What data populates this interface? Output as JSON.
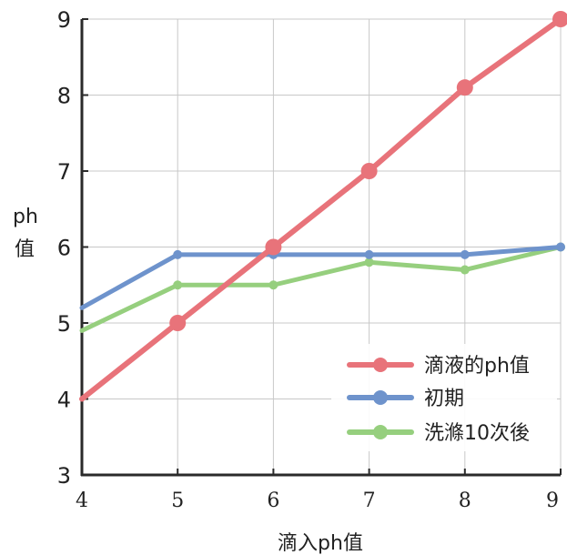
{
  "chart_data": {
    "type": "line",
    "title": "",
    "xlabel": "滴入ph值",
    "ylabel_lines": [
      "ph",
      "值"
    ],
    "xlim": [
      4,
      9
    ],
    "ylim": [
      3,
      9
    ],
    "xticks": [
      4,
      5,
      6,
      7,
      8,
      9
    ],
    "yticks": [
      3,
      4,
      5,
      6,
      7,
      8,
      9
    ],
    "grid": true,
    "legend_position": "bottom-right",
    "series": [
      {
        "name": "滴液的ph值",
        "color": "#e8737a",
        "x": [
          4,
          5,
          6,
          7,
          8,
          9
        ],
        "y": [
          4,
          5,
          6,
          7,
          8.1,
          9
        ]
      },
      {
        "name": "初期",
        "color": "#6e93cc",
        "x": [
          4,
          5,
          6,
          7,
          8,
          9
        ],
        "y": [
          5.2,
          5.9,
          5.9,
          5.9,
          5.9,
          6
        ]
      },
      {
        "name": "洗滌10次後",
        "color": "#96cf7e",
        "x": [
          4,
          5,
          6,
          7,
          8,
          9
        ],
        "y": [
          4.9,
          5.5,
          5.5,
          5.8,
          5.7,
          6
        ]
      }
    ]
  }
}
